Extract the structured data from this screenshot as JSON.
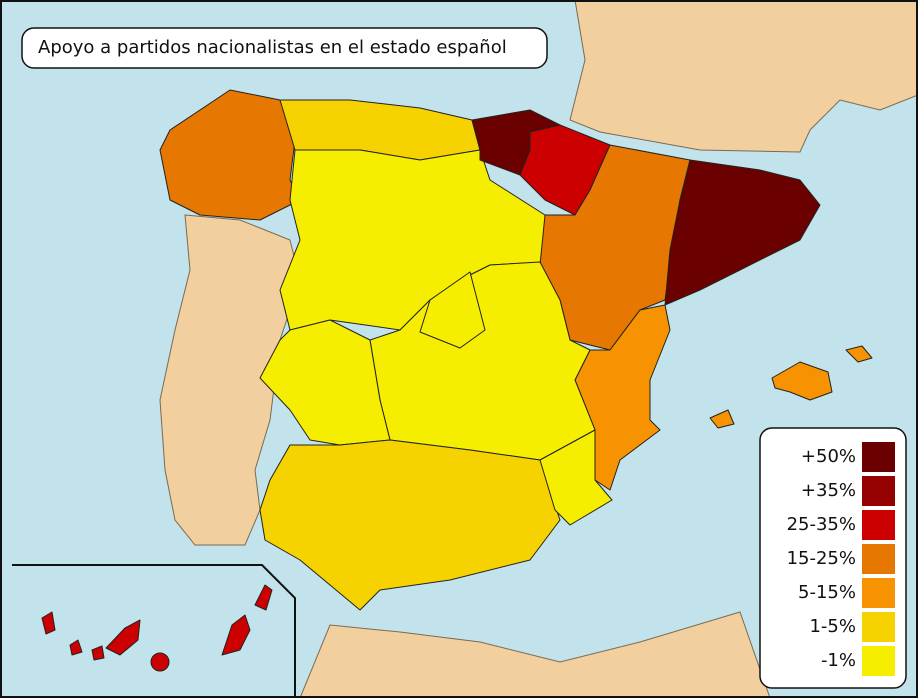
{
  "title": "Apoyo a partidos nacionalistas en el estado español",
  "legend": [
    {
      "label": "+50%",
      "color": "#6b0000"
    },
    {
      "label": "+35%",
      "color": "#950000"
    },
    {
      "label": "25-35%",
      "color": "#cc0000"
    },
    {
      "label": "15-25%",
      "color": "#e67700"
    },
    {
      "label": "5-15%",
      "color": "#f79300"
    },
    {
      "label": "1-5%",
      "color": "#f6d200"
    },
    {
      "label": "-1%",
      "color": "#f6ee00"
    }
  ]
}
